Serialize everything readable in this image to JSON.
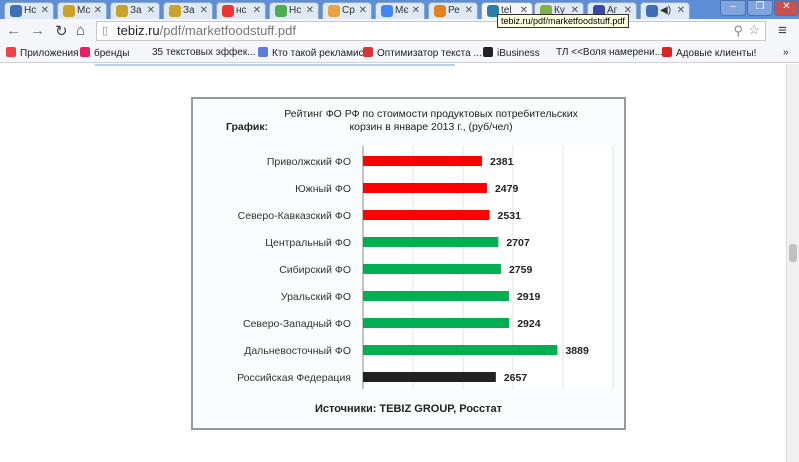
{
  "browser": {
    "tabs": [
      {
        "label": "Нс",
        "color": "#3b6fb6"
      },
      {
        "label": "Мс",
        "color": "#c9a227"
      },
      {
        "label": "За",
        "color": "#c9a227"
      },
      {
        "label": "За",
        "color": "#c9a227"
      },
      {
        "label": "нс",
        "color": "#e33"
      },
      {
        "label": "Нс",
        "color": "#4caf50"
      },
      {
        "label": "Ср",
        "color": "#e8a33c"
      },
      {
        "label": "Мє",
        "color": "#4285f4"
      },
      {
        "label": "Ре",
        "color": "#e67e22"
      },
      {
        "label": "tel",
        "color": "#2a7fa8",
        "active": true
      },
      {
        "label": "Ку",
        "color": "#7cb342"
      },
      {
        "label": "Аг",
        "color": "#3949ab"
      },
      {
        "label": "◀)",
        "color": "#3b6fb6"
      }
    ],
    "url_host": "tebiz.ru",
    "url_path": "/pdf/marketfoodstuff.pdf",
    "tooltip": "tebiz.ru/pdf/marketfoodstuff.pdf",
    "bookmarks": [
      {
        "label": "Приложения",
        "color": "#e44"
      },
      {
        "label": "бренды",
        "color": "#e91e63"
      },
      {
        "label": "35 текстовых эффек...",
        "color": ""
      },
      {
        "label": "Кто такой рекламист",
        "color": "#5b7fd6"
      },
      {
        "label": "Оптимизатор текста ...",
        "color": "#d33"
      },
      {
        "label": "iBusiness",
        "color": "#222"
      },
      {
        "label": "ТЛ <<Воля намерени...",
        "color": ""
      },
      {
        "label": "Адовые клиенты!",
        "color": "#d22"
      }
    ],
    "more": "»"
  },
  "chart_data": {
    "type": "bar",
    "orientation": "horizontal",
    "title_bold": "График:",
    "title": "Рейтинг ФО РФ по стоимости продуктовых потребительских корзин в январе 2013 г., (руб/чел)",
    "categories": [
      "Приволжский ФО",
      "Южный ФО",
      "Северо-Кавказский ФО",
      "Центральный ФО",
      "Сибирский ФО",
      "Уральский ФО",
      "Северо-Западный ФО",
      "Дальневосточный ФО",
      "Российская Федерация"
    ],
    "values": [
      2381,
      2479,
      2531,
      2707,
      2759,
      2919,
      2924,
      3889,
      2657
    ],
    "colors": [
      "#ff0000",
      "#ff0000",
      "#ff0000",
      "#00b050",
      "#00b050",
      "#00b050",
      "#00b050",
      "#00b050",
      "#222222"
    ],
    "xlim": [
      0,
      5000
    ],
    "grid": true,
    "source": "Источники: TEBIZ GROUP, Росстат"
  }
}
